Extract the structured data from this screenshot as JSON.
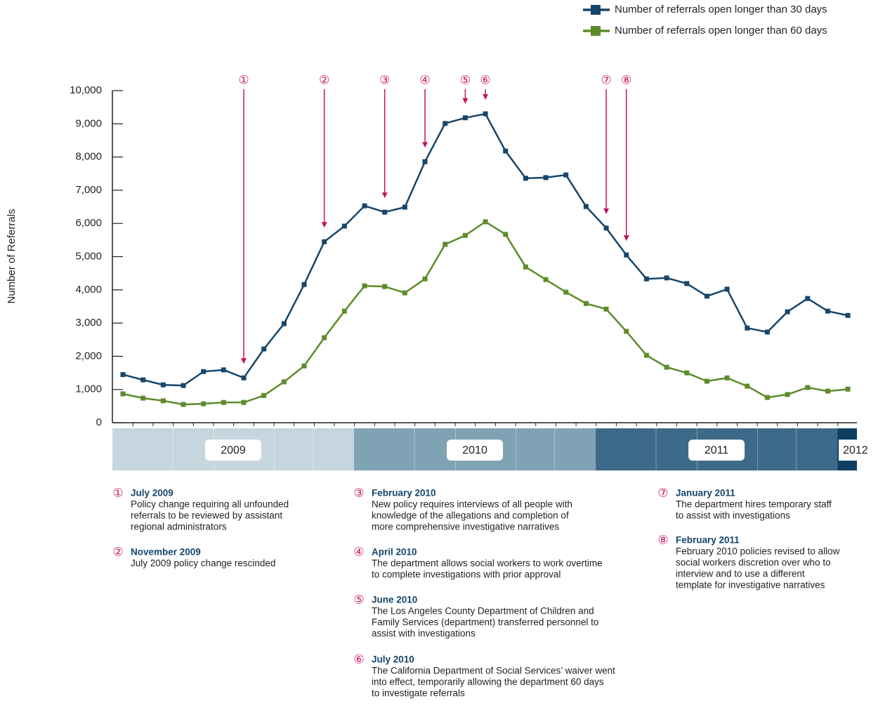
{
  "chart_data": {
    "type": "line",
    "y_axis_label": "Number of Referrals",
    "categories": [
      null,
      null,
      null,
      null,
      null,
      null,
      null,
      null,
      null,
      null,
      null,
      null,
      null,
      null,
      null,
      null,
      null,
      null,
      null,
      null,
      null,
      null,
      null,
      null,
      null,
      null,
      null,
      null,
      null,
      null,
      null,
      null,
      null,
      null,
      null,
      null,
      null
    ],
    "year_labels": [
      "2009",
      "2010",
      "2011",
      "2012"
    ],
    "ylim": [
      0,
      10000
    ],
    "yticks": [
      0,
      {
        "value": 1000,
        "label": "1,000"
      },
      {
        "value": 2000,
        "label": "2,000"
      },
      {
        "value": 3000,
        "label": "3,000"
      },
      {
        "value": 4000,
        "label": "4,000"
      },
      {
        "value": 5000,
        "label": "5,000"
      },
      {
        "value": 6000,
        "label": "6,000"
      },
      {
        "value": 7000,
        "label": "7,000"
      },
      {
        "value": 8000,
        "label": "8,000"
      },
      {
        "value": 9000,
        "label": "9,000"
      },
      {
        "value": 10000,
        "label": "10,000"
      }
    ],
    "legend": "top-right",
    "series": [
      {
        "name": "Number of referrals open longer than 30 days",
        "color": "#17466a",
        "values": [
          1450,
          1290,
          1140,
          1120,
          1540,
          1590,
          1350,
          2220,
          2980,
          4160,
          5450,
          5920,
          6530,
          6340,
          6490,
          7860,
          9010,
          9180,
          9300,
          8180,
          7360,
          7380,
          7460,
          6510,
          5860,
          5050,
          4330,
          4360,
          4190,
          3810,
          4020,
          2850,
          2730,
          3340,
          3740,
          3360,
          3230
        ]
      },
      {
        "name": "Number of referrals open longer than 60 days",
        "color": "#5e8b2b",
        "values": [
          870,
          740,
          660,
          550,
          570,
          610,
          610,
          820,
          1230,
          1710,
          2560,
          3360,
          4120,
          4100,
          3910,
          4330,
          5370,
          5640,
          6050,
          5670,
          4690,
          4310,
          3930,
          3590,
          3420,
          2750,
          2030,
          1670,
          1500,
          1250,
          1350,
          1100,
          760,
          850,
          1060,
          950,
          1010
        ]
      }
    ],
    "annotations": [
      {
        "marker": "①",
        "title": "July 2009",
        "lines": [
          "Policy change requiring all unfounded",
          "referrals to be reviewed by assistant",
          "regional administrators"
        ]
      },
      {
        "marker": "②",
        "title": "November 2009",
        "lines": [
          "July 2009 policy change rescinded"
        ]
      },
      {
        "marker": "③",
        "title": "February 2010",
        "lines": [
          "New policy requires interviews of all people with",
          "knowledge of the allegations and completion of",
          "more comprehensive investigative narratives"
        ]
      },
      {
        "marker": "④",
        "title": "April 2010",
        "lines": [
          "The department allows social workers to work overtime",
          "to complete investigations with prior approval"
        ]
      },
      {
        "marker": "⑤",
        "title": "June 2010",
        "lines": [
          "The Los Angeles County Department of Children and",
          "Family Services (department) transferred personnel to",
          "assist with investigations"
        ]
      },
      {
        "marker": "⑥",
        "title": "July 2010",
        "lines": [
          "The California Department of Social Services’ waiver went",
          "into effect, temporarily allowing the department 60 days",
          "to investigate referrals"
        ]
      },
      {
        "marker": "⑦",
        "title": "January 2011",
        "lines": [
          "The department hires temporary staff",
          "to assist with investigations"
        ]
      },
      {
        "marker": "⑧",
        "title": "February 2011",
        "lines": [
          "February 2010 policies revised to allow",
          "social workers discretion over who to",
          "interview and to use a different",
          "template for investigative narratives"
        ]
      }
    ]
  }
}
